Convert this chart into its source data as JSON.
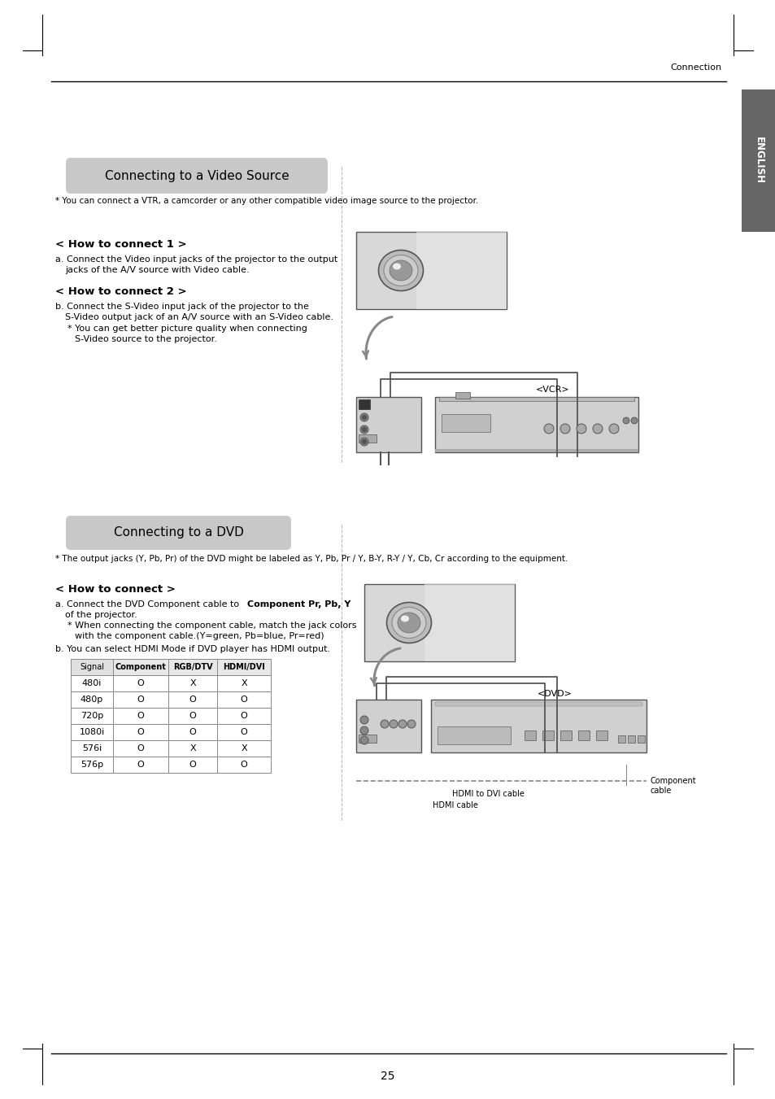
{
  "page_number": "25",
  "header_text": "Connection",
  "english_tab": "ENGLISH",
  "section1_title": "Connecting to a Video Source",
  "section1_note": "* You can connect a VTR, a camcorder or any other compatible video image source to the projector.",
  "how_to_connect1_title": "< How to connect 1 >",
  "how_to_connect2_title": "< How to connect 2 >",
  "vcr_label": "<VCR>",
  "section2_title": "Connecting to a DVD",
  "section2_note": "* The output jacks (Y, Pb, Pr) of the DVD might be labeled as Y, Pb, Pr / Y, B-Y, R-Y / Y, Cb, Cr according to the equipment.",
  "how_to_connect_dvd_title": "< How to connect >",
  "dvd_label": "<DVD>",
  "hdmi_dvi_label": "HDMI to DVI cable",
  "component_cable_label": "Component\ncable",
  "hdmi_cable_label": "HDMI cable",
  "table_headers": [
    "Signal",
    "Component",
    "RGB/DTV",
    "HDMI/DVI"
  ],
  "table_rows": [
    [
      "480i",
      "O",
      "X",
      "X"
    ],
    [
      "480p",
      "O",
      "O",
      "O"
    ],
    [
      "720p",
      "O",
      "O",
      "O"
    ],
    [
      "1080i",
      "O",
      "O",
      "O"
    ],
    [
      "576i",
      "O",
      "X",
      "X"
    ],
    [
      "576p",
      "O",
      "O",
      "O"
    ]
  ],
  "bg_color": "#ffffff",
  "section_bg": "#c8c8c8",
  "tab_bg": "#666666",
  "tab_text": "#ffffff",
  "text_color": "#000000"
}
